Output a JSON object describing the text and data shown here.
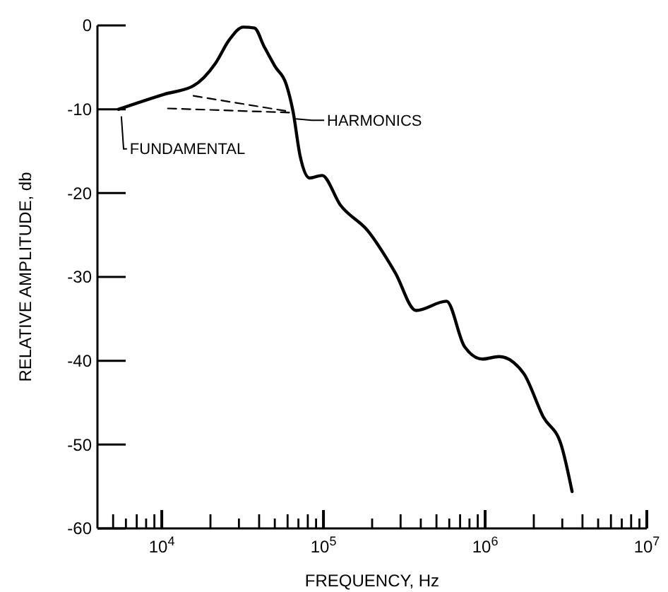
{
  "chart_data": {
    "type": "line",
    "xlabel": "FREQUENCY, Hz",
    "ylabel": "RELATIVE AMPLITUDE, db",
    "log": "x",
    "grid": false,
    "marker": "none",
    "xlim": [
      4000,
      10000000
    ],
    "ylim": [
      -60,
      0
    ],
    "xticks": [
      {
        "value": 5000,
        "label": null
      },
      {
        "value": 6000,
        "label": null
      },
      {
        "value": 7000,
        "label": null
      },
      {
        "value": 8000,
        "label": null
      },
      {
        "value": 9000,
        "label": null
      },
      {
        "value": 10000,
        "label": "10$^{4}$"
      },
      {
        "value": 20000,
        "label": null
      },
      {
        "value": 30000,
        "label": null
      },
      {
        "value": 40000,
        "label": null
      },
      {
        "value": 50000,
        "label": null
      },
      {
        "value": 60000,
        "label": null
      },
      {
        "value": 70000,
        "label": null
      },
      {
        "value": 80000,
        "label": null
      },
      {
        "value": 90000,
        "label": null
      },
      {
        "value": 100000,
        "label": "10$^{5}$"
      },
      {
        "value": 200000,
        "label": null
      },
      {
        "value": 300000,
        "label": null
      },
      {
        "value": 400000,
        "label": null
      },
      {
        "value": 500000,
        "label": null
      },
      {
        "value": 600000,
        "label": null
      },
      {
        "value": 700000,
        "label": null
      },
      {
        "value": 800000,
        "label": null
      },
      {
        "value": 900000,
        "label": null
      },
      {
        "value": 1000000,
        "label": "10$^{6}$"
      },
      {
        "value": 2000000,
        "label": null
      },
      {
        "value": 3000000,
        "label": null
      },
      {
        "value": 4000000,
        "label": null
      },
      {
        "value": 5000000,
        "label": null
      },
      {
        "value": 6000000,
        "label": null
      },
      {
        "value": 7000000,
        "label": null
      },
      {
        "value": 8000000,
        "label": null
      },
      {
        "value": 9000000,
        "label": null
      },
      {
        "value": 10000000,
        "label": "10$^{7}$"
      }
    ],
    "yticks": [
      0,
      -10,
      -20,
      -30,
      -40,
      -50,
      -60
    ],
    "series": [
      {
        "color": "#000000",
        "line_style": "solid",
        "x": [
          5400,
          10400,
          15700,
          21500,
          26200,
          31900,
          37400,
          42900,
          50200,
          58800,
          64900,
          71600,
          82200,
          98000,
          127000,
          188000,
          278000,
          374000,
          577000,
          745000,
          962000,
          1220000,
          1730000,
          2290000,
          2950000,
          3450000
        ],
        "values": [
          -10,
          -8.2,
          -7.2,
          -4.5,
          -1.7,
          -0.2,
          -0.3,
          -2.5,
          -4.9,
          -7,
          -10.3,
          -15.5,
          -18.2,
          -17.9,
          -21.4,
          -24.5,
          -29.5,
          -34,
          -32.9,
          -38.3,
          -39.8,
          -39.5,
          -41.5,
          -46.7,
          -50,
          -55.6
        ]
      },
      {
        "color": "#000000",
        "line_style": "dashed",
        "x": [
          15700,
          63000
        ],
        "values": [
          -8.4,
          -10.3
        ]
      },
      {
        "color": "#000000",
        "line_style": "dashed",
        "x": [
          10900,
          63000
        ],
        "values": [
          -9.9,
          -10.4
        ]
      }
    ],
    "annotations": [
      {
        "text": "FUNDAMENTAL",
        "x": 5400,
        "y": -10
      },
      {
        "text": "HARMONICS",
        "x": 64900,
        "y": -10.3
      }
    ]
  }
}
